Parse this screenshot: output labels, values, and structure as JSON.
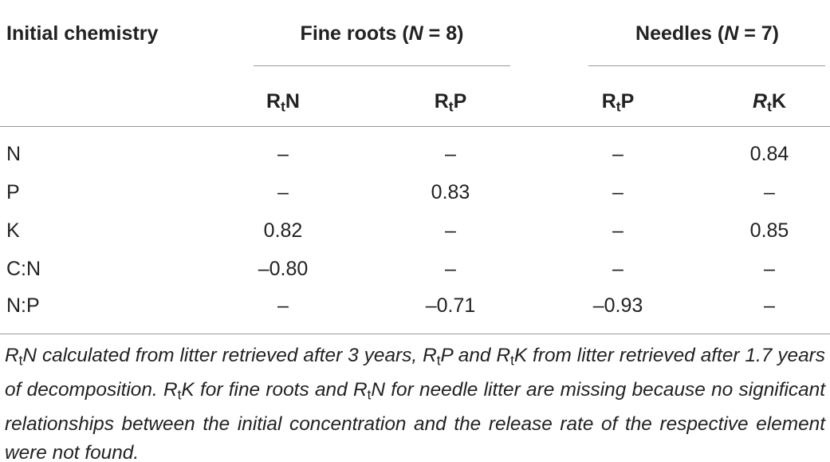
{
  "header": {
    "first": "Initial chemistry",
    "groups": [
      [
        "Fine roots (",
        "N",
        " = 8)"
      ],
      [
        "Needles (",
        "N",
        " = 7)"
      ]
    ],
    "columns": [
      [
        "R",
        "t",
        "N"
      ],
      [
        "R",
        "t",
        "P"
      ],
      [
        "R",
        "t",
        "P"
      ],
      [
        "R",
        "t",
        "K"
      ]
    ]
  },
  "rows": [
    [
      "N",
      "–",
      "–",
      "–",
      "0.84"
    ],
    [
      "P",
      "–",
      "0.83",
      "–",
      "–"
    ],
    [
      "K",
      "0.82",
      "–",
      "–",
      "0.85"
    ],
    [
      "C:N",
      "–0.80",
      "–",
      "–",
      "–"
    ],
    [
      "N:P",
      "–",
      "–0.71",
      "–0.93",
      "–"
    ]
  ],
  "footnote": [
    "R",
    "t",
    "N calculated from litter retrieved after 3 years, R",
    "t",
    "P and R",
    "t",
    "K from litter retrieved after 1.7 years of decomposition. R",
    "t",
    "K for fine roots and R",
    "t",
    "N for needle litter are missing because no significant relationships between the initial concentration and the release rate of the respective element were not found."
  ]
}
